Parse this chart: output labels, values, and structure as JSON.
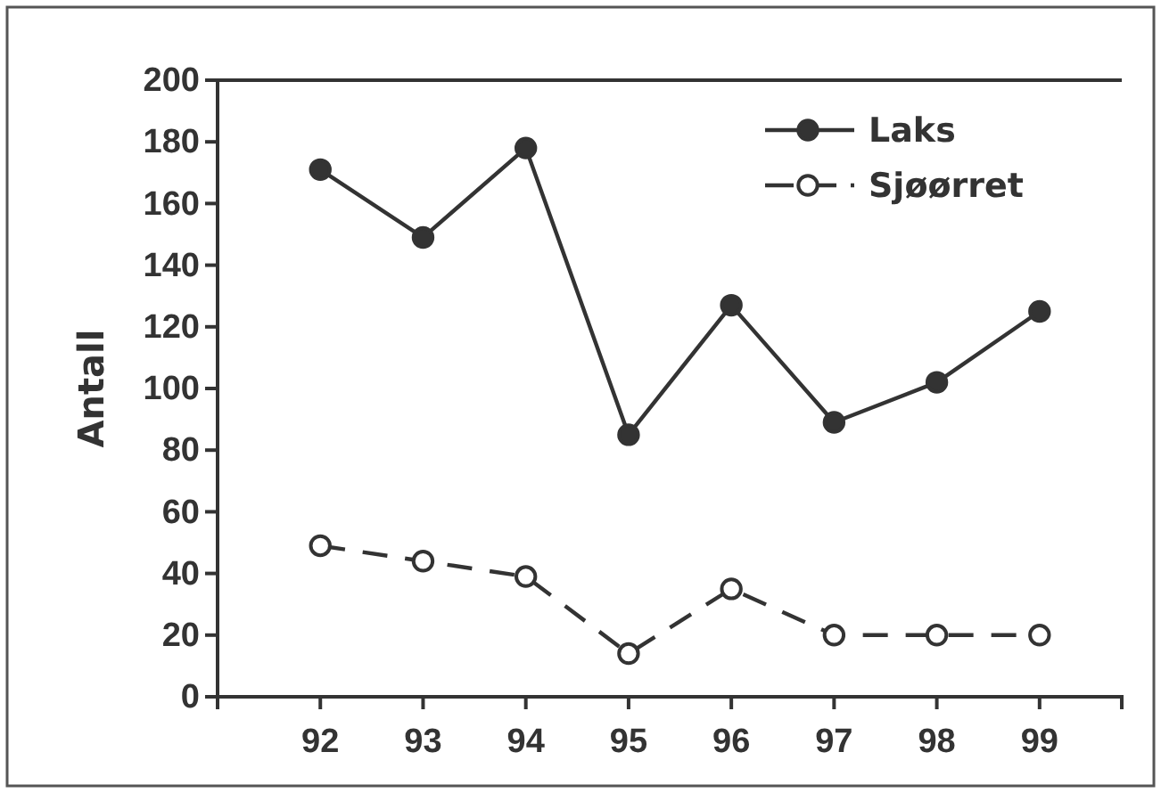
{
  "chart_data": {
    "type": "line",
    "ylabel": "Antall",
    "x": [
      92,
      93,
      94,
      95,
      96,
      97,
      98,
      99
    ],
    "xlim": [
      91,
      99.8
    ],
    "xticks": [
      92,
      93,
      94,
      95,
      96,
      97,
      98,
      99
    ],
    "ylim": [
      0,
      200
    ],
    "yticks": [
      0,
      20,
      40,
      60,
      80,
      100,
      120,
      140,
      160,
      180,
      200
    ],
    "legend": "top right",
    "grid": false,
    "series": [
      {
        "name": "Laks",
        "color": "#333333",
        "marker": "circle",
        "line_style": "solid",
        "values": [
          171,
          149,
          178,
          85,
          127,
          89,
          102,
          125
        ]
      },
      {
        "name": "Sjøørret",
        "color": "#333333",
        "marker": "circle",
        "line_style": "dashed",
        "values": [
          49,
          44,
          39,
          14,
          35,
          20,
          20,
          20
        ]
      }
    ]
  }
}
